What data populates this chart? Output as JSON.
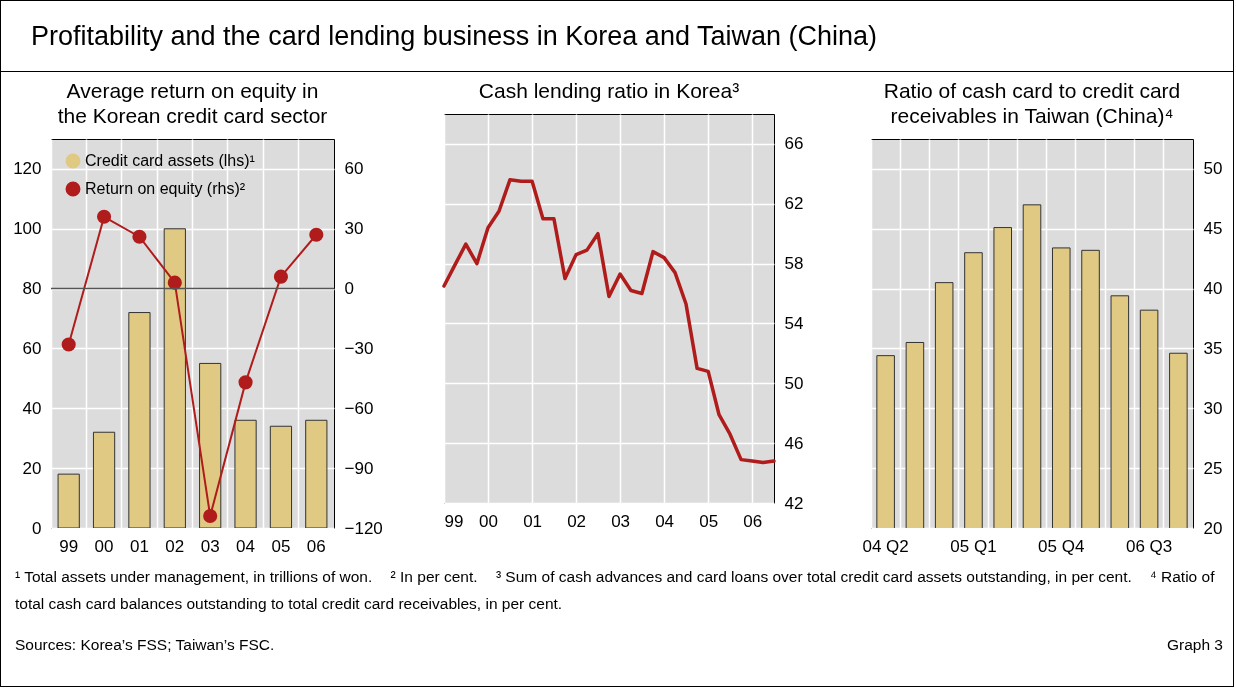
{
  "chart_data": [
    {
      "type": "other",
      "title": "Profitability and the card lending business in Korea and Taiwan (China)"
    },
    {
      "type": "bar",
      "title": "Average return on equity in the Korean credit card sector",
      "categories": [
        "99",
        "00",
        "01",
        "02",
        "03",
        "04",
        "05",
        "06"
      ],
      "series": [
        {
          "name": "Credit card assets (lhs)¹",
          "type": "bar",
          "color": "#e0c983",
          "values": [
            18,
            32,
            72,
            100,
            55,
            36,
            34,
            36
          ]
        },
        {
          "name": "Return on equity (rhs)²",
          "type": "line",
          "axis": "y2",
          "color": "#b01c1c",
          "values": [
            -28,
            36,
            26,
            3,
            -114,
            -47,
            6,
            27
          ]
        }
      ],
      "ylim": [
        0,
        130
      ],
      "yticks": [
        0,
        20,
        40,
        60,
        80,
        100,
        120
      ],
      "y2lim": [
        -120,
        75
      ],
      "y2ticks": [
        -120,
        -90,
        -60,
        -30,
        0,
        30,
        60
      ],
      "ref_lines": [
        {
          "axis": "y2",
          "value": 0,
          "color": "#555555"
        }
      ],
      "legend": "top left",
      "grid": true,
      "marker": "circle"
    },
    {
      "type": "line",
      "title": "Cash lending ratio in Korea³",
      "x": [
        "1999-01",
        "1999-04",
        "1999-07",
        "1999-10",
        "2000-01",
        "2000-04",
        "2000-07",
        "2000-10",
        "2001-01",
        "2001-04",
        "2001-07",
        "2001-10",
        "2002-01",
        "2002-04",
        "2002-07",
        "2002-10",
        "2003-01",
        "2003-04",
        "2003-07",
        "2003-10",
        "2004-01",
        "2004-04",
        "2004-07",
        "2004-10",
        "2005-01",
        "2005-04",
        "2005-07",
        "2005-10",
        "2006-01",
        "2006-04",
        "2006-07"
      ],
      "series": [
        {
          "color": "#b01c1c",
          "values": [
            56.5,
            57.9,
            59.3,
            58.0,
            60.4,
            61.5,
            63.6,
            63.5,
            63.5,
            61.0,
            61.0,
            57.0,
            58.6,
            58.9,
            60.0,
            55.8,
            57.3,
            56.2,
            56.0,
            58.8,
            58.4,
            57.4,
            55.3,
            51.0,
            50.8,
            47.9,
            46.6,
            44.9,
            44.8,
            44.7,
            44.8
          ]
        }
      ],
      "xlim": [
        "1999-01",
        "2006-07"
      ],
      "xticks": [
        {
          "value": "1999",
          "label": "99"
        },
        {
          "value": "2000",
          "label": "00"
        },
        {
          "value": "2001",
          "label": "01"
        },
        {
          "value": "2002",
          "label": "02"
        },
        {
          "value": "2003",
          "label": "03"
        },
        {
          "value": "2004",
          "label": "04"
        },
        {
          "value": "2005",
          "label": "05"
        },
        {
          "value": "2006",
          "label": "06"
        }
      ],
      "ylim": [
        42,
        68
      ],
      "yticks": [
        42,
        46,
        50,
        54,
        58,
        62,
        66
      ],
      "grid": true
    },
    {
      "type": "bar",
      "title": "Ratio of cash card to credit card receivables in Taiwan (China)⁴",
      "categories": [
        "04 Q2",
        null,
        null,
        "05 Q1",
        null,
        null,
        "05 Q4",
        null,
        null,
        "06 Q3",
        null
      ],
      "series": [
        {
          "color": "#e0c983",
          "values": [
            34.4,
            35.5,
            40.5,
            43.0,
            45.1,
            47.0,
            43.4,
            43.2,
            39.4,
            38.2,
            34.6
          ]
        }
      ],
      "ylim": [
        20,
        52.5
      ],
      "yticks": [
        20,
        25,
        30,
        35,
        40,
        45,
        50
      ],
      "grid": true
    },
    {
      "type": "other",
      "annotations": [
        "¹ Total assets under management, in trillions of won.",
        "² In per cent.",
        "³ Sum of cash advances and card loans over total credit card assets outstanding, in per cent.",
        "⁴ Ratio of total cash card balances outstanding to total credit card receivables, in per cent.",
        "Sources: Korea’s FSS; Taiwan’s FSC.",
        "Graph 3"
      ]
    }
  ]
}
